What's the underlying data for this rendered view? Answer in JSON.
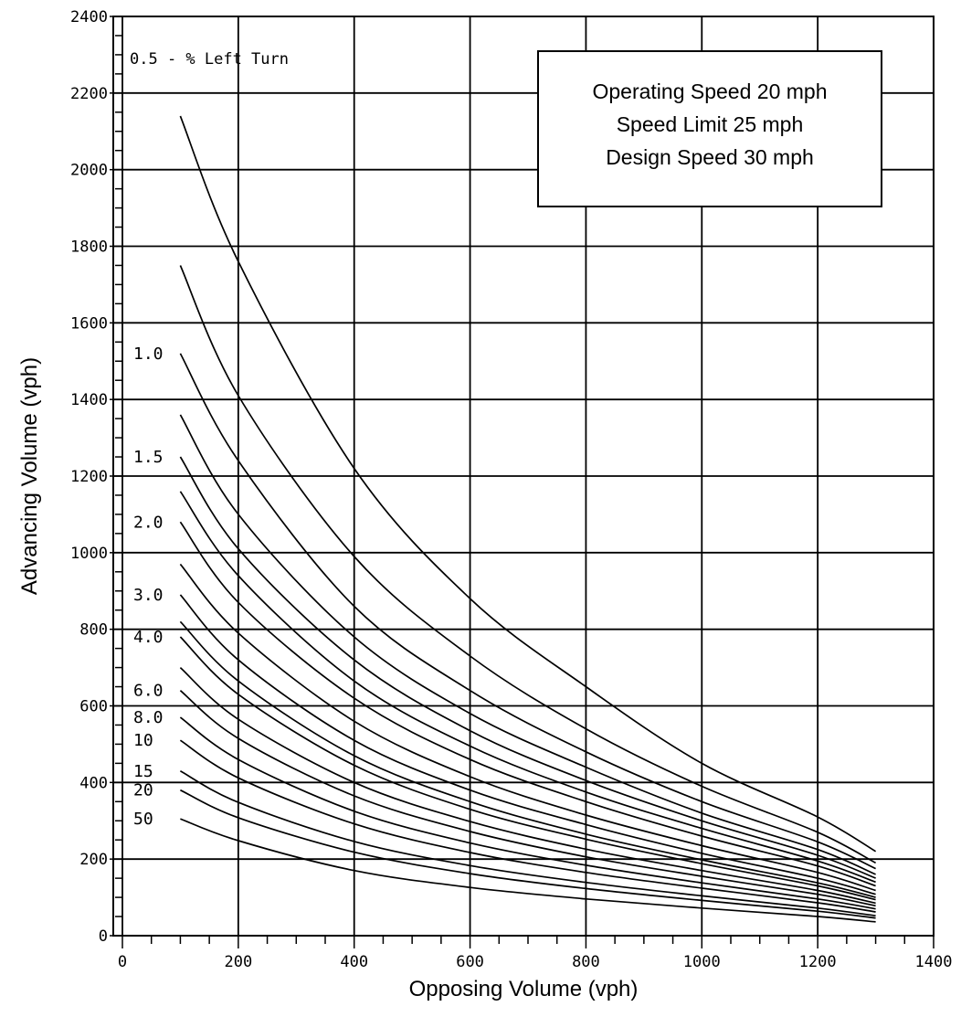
{
  "chart_data": {
    "type": "line",
    "title": "",
    "xlabel": "Opposing Volume (vph)",
    "ylabel": "Advancing Volume (vph)",
    "xlim": [
      0,
      1400
    ],
    "ylim": [
      0,
      2400
    ],
    "x_ticks": [
      "0",
      "200",
      "400",
      "600",
      "800",
      "1000",
      "1200",
      "1400"
    ],
    "y_ticks": [
      "0",
      "200",
      "400",
      "600",
      "800",
      "1000",
      "1200",
      "1400",
      "1600",
      "1800",
      "2000",
      "2200",
      "2400"
    ],
    "grid": true,
    "annotation_box": [
      "Operating Speed 20 mph",
      "Speed Limit 25 mph",
      "Design Speed 30 mph"
    ],
    "x": [
      100,
      200,
      400,
      600,
      800,
      1000,
      1200,
      1300
    ],
    "series": [
      {
        "name": "0.5",
        "values": [
          2140,
          1760,
          1220,
          880,
          650,
          450,
          310,
          220
        ]
      },
      {
        "name": "",
        "values": [
          1750,
          1410,
          990,
          730,
          540,
          390,
          270,
          190
        ]
      },
      {
        "name": "1.0",
        "values": [
          1520,
          1240,
          860,
          640,
          480,
          350,
          245,
          175
        ]
      },
      {
        "name": "",
        "values": [
          1360,
          1100,
          780,
          580,
          440,
          320,
          225,
          160
        ]
      },
      {
        "name": "1.5",
        "values": [
          1250,
          1010,
          720,
          535,
          405,
          300,
          210,
          150
        ]
      },
      {
        "name": "",
        "values": [
          1160,
          940,
          665,
          495,
          375,
          280,
          195,
          140
        ]
      },
      {
        "name": "2.0",
        "values": [
          1080,
          870,
          620,
          460,
          350,
          260,
          182,
          130
        ]
      },
      {
        "name": "",
        "values": [
          970,
          790,
          560,
          415,
          315,
          235,
          165,
          118
        ]
      },
      {
        "name": "3.0",
        "values": [
          890,
          720,
          510,
          380,
          290,
          215,
          150,
          108
        ]
      },
      {
        "name": "",
        "values": [
          820,
          665,
          470,
          350,
          265,
          198,
          138,
          100
        ]
      },
      {
        "name": "4.0",
        "values": [
          780,
          630,
          445,
          330,
          252,
          188,
          130,
          94
        ]
      },
      {
        "name": "",
        "values": [
          700,
          565,
          400,
          298,
          226,
          170,
          118,
          85
        ]
      },
      {
        "name": "6.0",
        "values": [
          640,
          515,
          365,
          272,
          206,
          155,
          108,
          78
        ]
      },
      {
        "name": "8.0",
        "values": [
          570,
          460,
          325,
          242,
          184,
          138,
          96,
          70
        ]
      },
      {
        "name": "10",
        "values": [
          510,
          412,
          292,
          217,
          165,
          124,
          86,
          62
        ]
      },
      {
        "name": "15",
        "values": [
          430,
          348,
          246,
          183,
          139,
          104,
          72,
          52
        ]
      },
      {
        "name": "20",
        "values": [
          380,
          308,
          218,
          162,
          123,
          92,
          64,
          46
        ]
      },
      {
        "name": "50",
        "values": [
          305,
          248,
          170,
          126,
          96,
          72,
          50,
          36
        ]
      }
    ],
    "legend_title": "0.5 - % Left Turn"
  }
}
